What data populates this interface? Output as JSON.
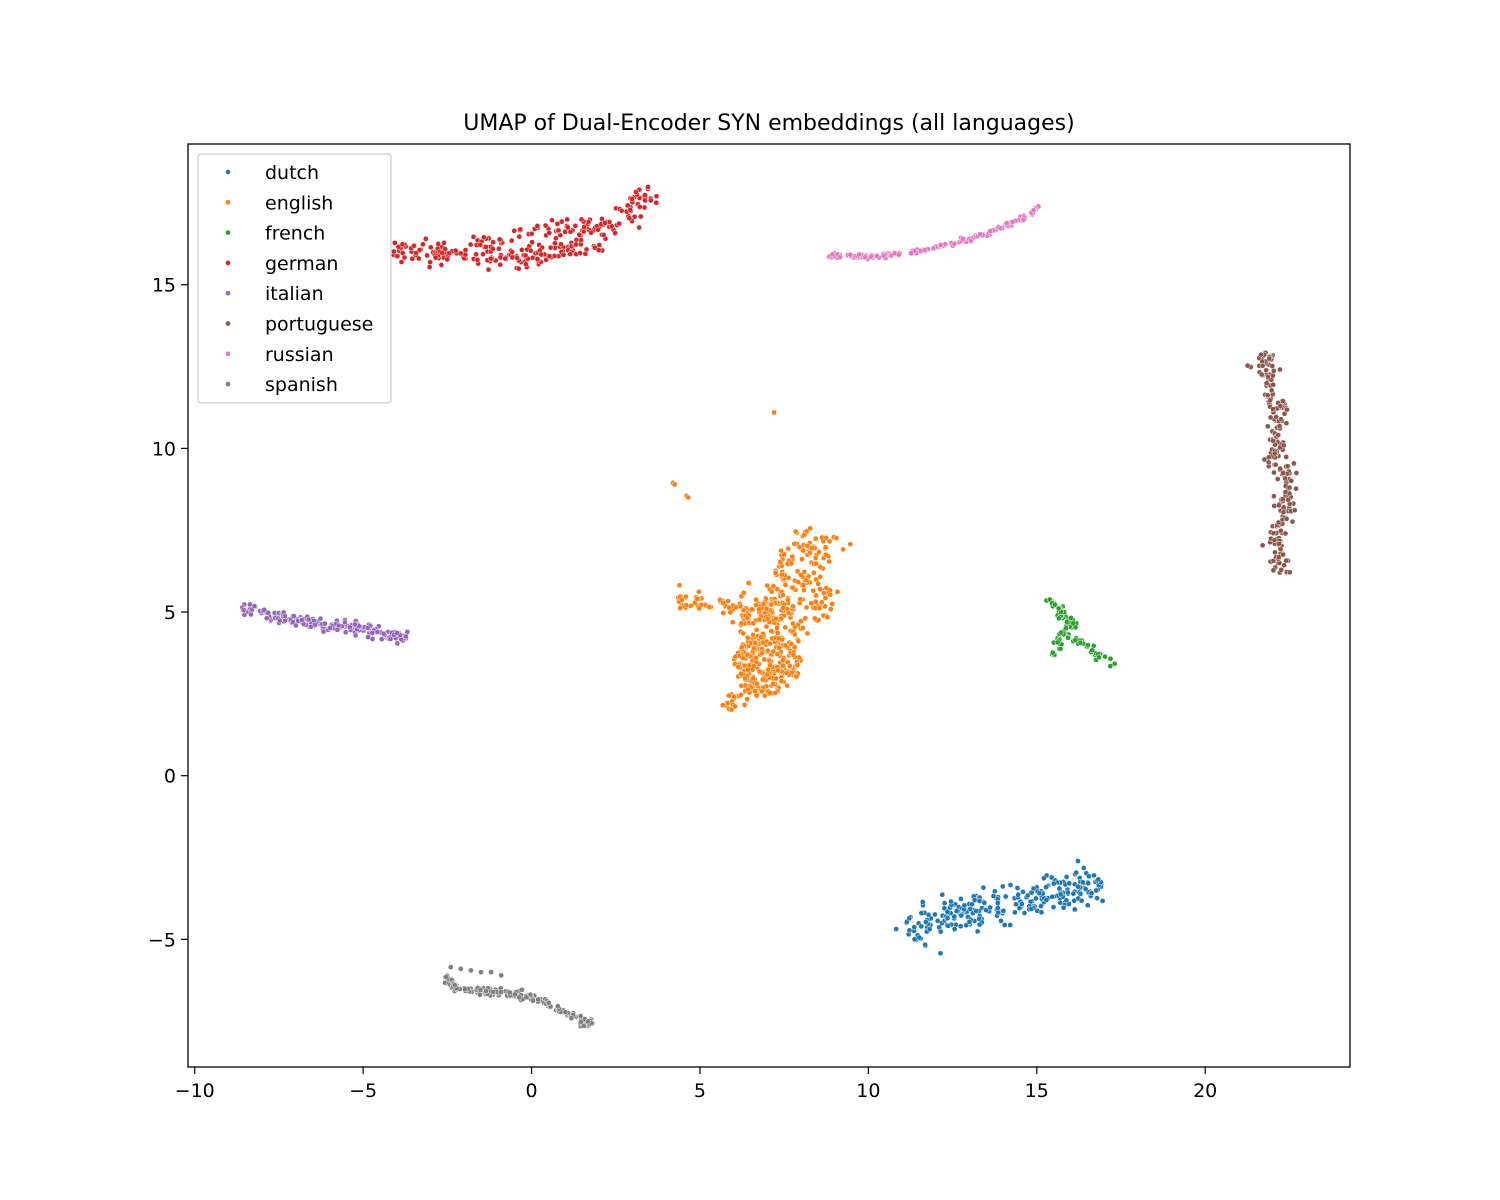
{
  "chart_data": {
    "type": "scatter",
    "title": "UMAP of Dual-Encoder SYN embeddings (all languages)",
    "xlabel": "",
    "ylabel": "",
    "xlim": [
      -10.2,
      24.3
    ],
    "ylim": [
      -8.9,
      19.3
    ],
    "xticks": [
      -10,
      -5,
      0,
      5,
      10,
      15,
      20
    ],
    "yticks": [
      -5,
      0,
      5,
      10,
      15
    ],
    "grid": false,
    "legend_position": "top-left",
    "series": [
      {
        "name": "dutch",
        "color": "#1f77b4",
        "clusters": [
          {
            "shape": "curve",
            "count": 260,
            "width": 0.6,
            "path": [
              [
                11.3,
                -5.0
              ],
              [
                11.6,
                -4.5
              ],
              [
                12.5,
                -4.3
              ],
              [
                13.5,
                -4.0
              ],
              [
                14.5,
                -3.8
              ],
              [
                15.5,
                -3.6
              ],
              [
                16.3,
                -3.4
              ],
              [
                16.9,
                -3.2
              ]
            ]
          }
        ]
      },
      {
        "name": "english",
        "color": "#ff7f0e",
        "clusters": [
          {
            "shape": "curve",
            "count": 50,
            "width": 0.35,
            "path": [
              [
                4.3,
                5.4
              ],
              [
                5.0,
                5.25
              ],
              [
                5.8,
                5.1
              ],
              [
                6.5,
                5.0
              ]
            ]
          },
          {
            "shape": "curve",
            "count": 160,
            "width": 0.9,
            "path": [
              [
                6.8,
                4.8
              ],
              [
                7.3,
                5.4
              ],
              [
                7.8,
                5.8
              ],
              [
                8.2,
                6.4
              ],
              [
                8.4,
                7.1
              ],
              [
                8.5,
                7.5
              ]
            ]
          },
          {
            "shape": "blob",
            "count": 220,
            "cx": 7.0,
            "cy": 3.4,
            "rx": 1.0,
            "ry": 0.9
          },
          {
            "shape": "blob",
            "count": 90,
            "cx": 7.2,
            "cy": 4.6,
            "rx": 1.1,
            "ry": 0.7
          },
          {
            "shape": "blob",
            "count": 30,
            "cx": 8.6,
            "cy": 5.3,
            "rx": 0.35,
            "ry": 0.6
          },
          {
            "shape": "curve",
            "count": 35,
            "width": 0.3,
            "path": [
              [
                5.7,
                2.1
              ],
              [
                6.2,
                2.4
              ],
              [
                6.8,
                2.7
              ]
            ]
          },
          {
            "shape": "points",
            "points": [
              [
                7.2,
                11.1
              ],
              [
                4.2,
                8.95
              ],
              [
                4.25,
                8.9
              ],
              [
                4.6,
                8.55
              ],
              [
                4.65,
                8.5
              ],
              [
                15.5,
                3.75
              ],
              [
                15.45,
                3.7
              ]
            ]
          }
        ]
      },
      {
        "name": "french",
        "color": "#2ca02c",
        "clusters": [
          {
            "shape": "curve",
            "count": 25,
            "width": 0.15,
            "path": [
              [
                15.3,
                5.45
              ],
              [
                15.55,
                5.2
              ],
              [
                15.8,
                4.8
              ]
            ]
          },
          {
            "shape": "curve",
            "count": 35,
            "width": 0.25,
            "path": [
              [
                15.4,
                3.6
              ],
              [
                15.6,
                4.0
              ],
              [
                15.9,
                4.5
              ],
              [
                16.1,
                4.8
              ]
            ]
          },
          {
            "shape": "curve",
            "count": 30,
            "width": 0.15,
            "path": [
              [
                15.6,
                4.3
              ],
              [
                16.1,
                4.2
              ],
              [
                16.6,
                3.9
              ],
              [
                17.0,
                3.6
              ],
              [
                17.4,
                3.4
              ]
            ]
          }
        ]
      },
      {
        "name": "german",
        "color": "#d62728",
        "clusters": [
          {
            "shape": "curve",
            "count": 230,
            "width": 0.45,
            "path": [
              [
                -4.1,
                16.1
              ],
              [
                -3.0,
                15.95
              ],
              [
                -2.0,
                15.85
              ],
              [
                -1.0,
                15.85
              ],
              [
                0.0,
                15.8
              ],
              [
                1.0,
                16.1
              ],
              [
                2.0,
                16.5
              ],
              [
                2.8,
                17.1
              ],
              [
                3.3,
                17.6
              ],
              [
                3.5,
                18.0
              ]
            ]
          },
          {
            "shape": "curve",
            "count": 50,
            "width": 0.3,
            "path": [
              [
                -2.0,
                16.2
              ],
              [
                -1.0,
                16.3
              ],
              [
                0.0,
                16.55
              ],
              [
                1.0,
                16.8
              ],
              [
                1.8,
                16.9
              ]
            ]
          }
        ]
      },
      {
        "name": "italian",
        "color": "#9467bd",
        "clusters": [
          {
            "shape": "curve",
            "count": 200,
            "width": 0.2,
            "path": [
              [
                -8.6,
                5.15
              ],
              [
                -8.0,
                5.0
              ],
              [
                -7.2,
                4.75
              ],
              [
                -6.3,
                4.6
              ],
              [
                -5.5,
                4.55
              ],
              [
                -5.0,
                4.5
              ],
              [
                -4.3,
                4.3
              ],
              [
                -3.7,
                4.2
              ]
            ]
          }
        ]
      },
      {
        "name": "portuguese",
        "color": "#8c564b",
        "clusters": [
          {
            "shape": "curve",
            "count": 220,
            "width": 0.35,
            "path": [
              [
                21.7,
                12.9
              ],
              [
                21.9,
                12.2
              ],
              [
                22.1,
                11.3
              ],
              [
                22.2,
                10.5
              ],
              [
                22.0,
                9.9
              ],
              [
                22.4,
                9.3
              ],
              [
                22.5,
                8.6
              ],
              [
                22.3,
                7.8
              ],
              [
                22.0,
                7.2
              ],
              [
                22.2,
                6.6
              ],
              [
                22.2,
                6.2
              ]
            ]
          }
        ]
      },
      {
        "name": "russian",
        "color": "#e377c2",
        "clusters": [
          {
            "shape": "curve",
            "count": 150,
            "width": 0.08,
            "path": [
              [
                8.8,
                15.9
              ],
              [
                10.0,
                15.85
              ],
              [
                11.0,
                15.95
              ],
              [
                12.0,
                16.15
              ],
              [
                13.0,
                16.4
              ],
              [
                14.0,
                16.75
              ],
              [
                14.8,
                17.1
              ],
              [
                15.1,
                17.45
              ]
            ]
          }
        ]
      },
      {
        "name": "spanish",
        "color": "#7f7f7f",
        "clusters": [
          {
            "shape": "curve",
            "count": 180,
            "width": 0.15,
            "path": [
              [
                -2.5,
                -6.1
              ],
              [
                -2.3,
                -6.5
              ],
              [
                -1.5,
                -6.6
              ],
              [
                -0.5,
                -6.65
              ],
              [
                0.3,
                -6.9
              ],
              [
                1.0,
                -7.2
              ],
              [
                1.5,
                -7.5
              ],
              [
                1.8,
                -7.6
              ]
            ]
          },
          {
            "shape": "points",
            "points": [
              [
                -2.4,
                -5.85
              ],
              [
                -2.1,
                -5.9
              ],
              [
                -1.8,
                -5.95
              ],
              [
                -1.5,
                -6.0
              ],
              [
                -1.2,
                -6.0
              ],
              [
                -0.9,
                -6.1
              ]
            ]
          }
        ]
      }
    ]
  }
}
